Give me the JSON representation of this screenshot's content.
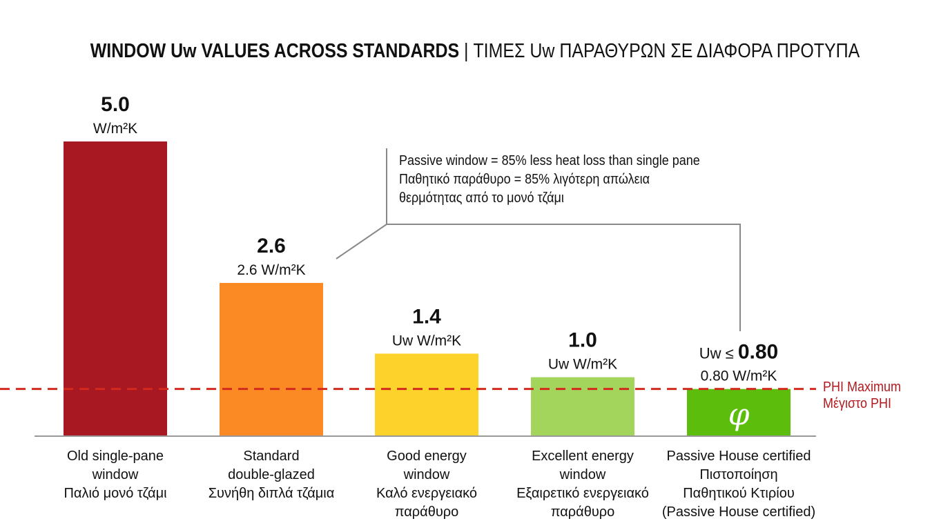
{
  "title_bold": "WINDOW Uw VALUES ACROSS STANDARDS",
  "title_rest": " | ΤΙΜΕΣ Uw ΠΑΡΑΘΥΡΩΝ ΣΕ ΔΙΑΦΟΡΑ ΠΡΟΤΥΠΑ",
  "callout": {
    "line1": "Passive window = 85% less heat loss than single pane",
    "line2": "Παθητικό παράθυρο = 85% λιγότερη απώλεια",
    "line3": "θερμότητας από το μονό τζάμι"
  },
  "phi_label": {
    "line1": "PHI Maximum",
    "line2": "Μέγιστο PHI"
  },
  "chart_data": {
    "type": "bar",
    "categories": [
      [
        "Old single-pane",
        "window",
        "Παλιό μονό τζάμι"
      ],
      [
        "Standard",
        "double-glazed",
        "Συνήθη διπλά τζάμια"
      ],
      [
        "Good energy",
        "window",
        "Καλό ενεργειακό",
        "παράθυρο"
      ],
      [
        "Excellent energy",
        "window",
        "Εξαιρετικό ενεργειακό",
        "παράθυρο"
      ],
      [
        "Passive House certified",
        "Πιστοποίηση",
        "Παθητικού Κτιρίου",
        "(Passive House certified)"
      ]
    ],
    "values": [
      5.0,
      2.6,
      1.4,
      1.0,
      0.8
    ],
    "value_labels": [
      {
        "main": "5.0",
        "prefix": "",
        "sub": "W/m²K"
      },
      {
        "main": "2.6",
        "prefix": "",
        "sub": "2.6 W/m²K"
      },
      {
        "main": "1.4",
        "prefix": "",
        "sub": "Uw W/m²K"
      },
      {
        "main": "1.0",
        "prefix": "",
        "sub": "Uw W/m²K"
      },
      {
        "main": "0.80",
        "prefix": "Uw ≤ ",
        "sub": "0.80 W/m²K"
      }
    ],
    "colors": [
      "#a81822",
      "#fb8a24",
      "#fdd22b",
      "#a3d45c",
      "#5dbd0c"
    ],
    "reference_line": {
      "value": 0.8,
      "color": "#d42a1e",
      "style": "dashed"
    },
    "ylim": [
      0,
      5.0
    ],
    "grid": false,
    "logo_on_last_bar": "passive-house-phi-logo"
  }
}
